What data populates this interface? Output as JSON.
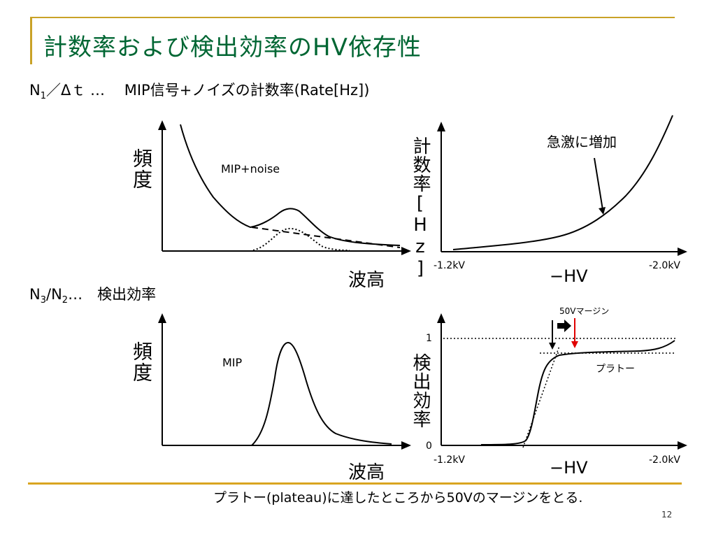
{
  "title": "計数率および検出効率のHV依存性",
  "line1": {
    "n": "N",
    "n_sub": "1",
    "rest": "／Δｔ … 　MIP信号+ノイズの計数率(Rate[Hz])"
  },
  "line2": {
    "n3": "N",
    "n3_sub": "3",
    "slash": "/N",
    "n2_sub": "2",
    "rest": "…　検出効率"
  },
  "top_left": {
    "ylabel": "頻度",
    "xlabel": "波高",
    "curve_label": "MIP+noise"
  },
  "top_right": {
    "ylabel": "計数率[Hz]",
    "xlabel": "−HV",
    "x_min_label": "-1.2kV",
    "x_max_label": "-2.0kV",
    "annotation": "急激に増加"
  },
  "bottom_left": {
    "ylabel": "頻度",
    "xlabel": "波高",
    "curve_label": "MIP"
  },
  "bottom_right": {
    "ylabel": "検出効率",
    "xlabel": "−HV",
    "x_min_label": "-1.2kV",
    "x_max_label": "-2.0kV",
    "y_one": "1",
    "y_zero": "0",
    "margin_label": "50Vマージン",
    "plateau_label": "プラトー"
  },
  "footer": "プラトー(plateau)に達したところから50Vのマージンをとる.",
  "page_number": "12",
  "colors": {
    "title": "#006633",
    "rule": "#c9a227",
    "red_arrow": "#e00000"
  }
}
